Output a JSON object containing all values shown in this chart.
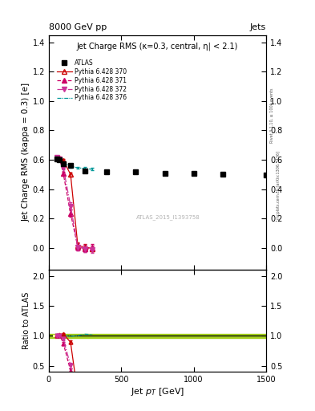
{
  "title_top": "8000 GeV pp",
  "title_top_right": "Jets",
  "plot_title": "Jet Charge RMS (κ=0.3, central, η| < 2.1)",
  "ylabel_main": "Jet Charge RMS (kappa = 0.3) [e]",
  "ylabel_ratio": "Ratio to ATLAS",
  "xlabel": "Jet p_{T} [GeV]",
  "watermark": "ATLAS_2015_I1393758",
  "right_label1": "Rivet 3.1.10, ≥ 100k events",
  "right_label2": "mcplots.cern.ch [arXiv:1306.3436]",
  "atlas_x": [
    55,
    75,
    100,
    150,
    250,
    400,
    600,
    800,
    1000,
    1200,
    1500
  ],
  "atlas_y": [
    0.608,
    0.6,
    0.575,
    0.56,
    0.525,
    0.52,
    0.52,
    0.505,
    0.505,
    0.502,
    0.495
  ],
  "atlas_yerr": [
    0.01,
    0.008,
    0.008,
    0.007,
    0.006,
    0.005,
    0.005,
    0.005,
    0.005,
    0.005,
    0.005
  ],
  "py370_x": [
    55,
    75,
    100,
    150,
    200,
    250,
    300
  ],
  "py370_y": [
    0.615,
    0.612,
    0.595,
    0.5,
    0.015,
    0.005,
    -0.005
  ],
  "py370_yerr": [
    0.008,
    0.008,
    0.008,
    0.015,
    0.02,
    0.02,
    0.02
  ],
  "py371_x": [
    55,
    75,
    100,
    150,
    200,
    250,
    300
  ],
  "py371_y": [
    0.615,
    0.607,
    0.505,
    0.235,
    0.005,
    -0.005,
    0.0
  ],
  "py371_yerr": [
    0.008,
    0.008,
    0.015,
    0.025,
    0.025,
    0.025,
    0.025
  ],
  "py372_x": [
    55,
    75,
    100,
    150,
    200,
    250,
    300
  ],
  "py372_y": [
    0.615,
    0.607,
    0.545,
    0.285,
    0.005,
    -0.005,
    -0.01
  ],
  "py372_yerr": [
    0.008,
    0.008,
    0.012,
    0.025,
    0.025,
    0.025,
    0.025
  ],
  "py376_x": [
    55,
    75,
    100,
    150,
    200,
    250,
    300
  ],
  "py376_y": [
    0.61,
    0.605,
    0.58,
    0.555,
    0.545,
    0.54,
    0.535
  ],
  "py376_yerr": [
    0.008,
    0.008,
    0.008,
    0.008,
    0.008,
    0.008,
    0.008
  ],
  "color_370": "#cc0000",
  "color_371": "#cc0066",
  "color_372": "#cc3399",
  "color_376": "#009999",
  "color_atlas": "#000000",
  "color_green_band": "#99cc00",
  "color_yellow_band": "#ffff99",
  "xlim": [
    0,
    1500
  ],
  "ylim_main": [
    -0.15,
    1.45
  ],
  "ylim_ratio": [
    0.4,
    2.1
  ],
  "yticks_main": [
    0.0,
    0.2,
    0.4,
    0.6,
    0.8,
    1.0,
    1.2,
    1.4
  ],
  "yticks_ratio": [
    0.5,
    1.0,
    1.5,
    2.0
  ],
  "xticks": [
    0,
    500,
    1000,
    1500
  ]
}
